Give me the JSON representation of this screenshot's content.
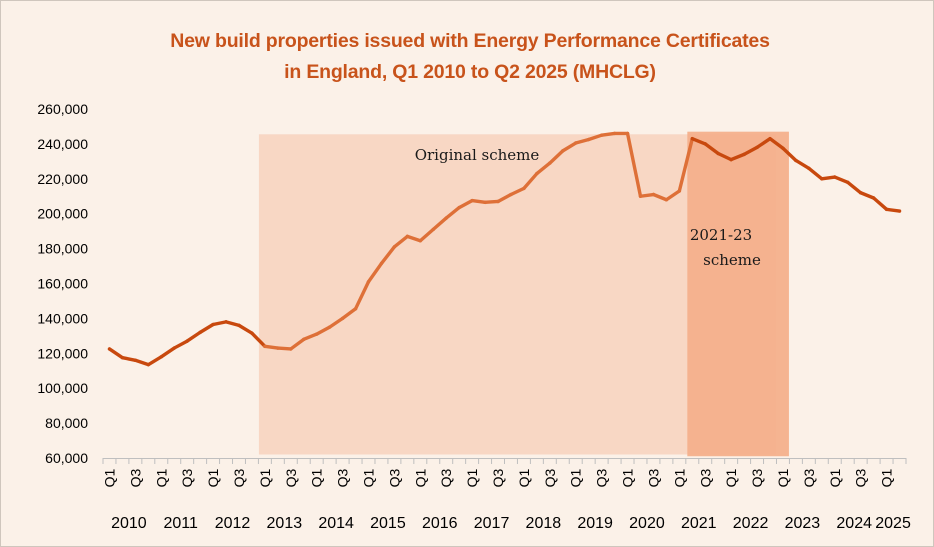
{
  "chart_data": {
    "type": "line",
    "title": [
      "New build properties issued with Energy Performance Certificates",
      "in England, Q1 2010 to Q2 2025 (MHCLG)"
    ],
    "xlabel": "",
    "ylabel": "",
    "ylim": [
      60000,
      260000
    ],
    "yticks": [
      60000,
      80000,
      100000,
      120000,
      140000,
      160000,
      180000,
      200000,
      220000,
      240000,
      260000
    ],
    "ytick_labels": [
      "60,000",
      "80,000",
      "100,000",
      "120,000",
      "140,000",
      "160,000",
      "180,000",
      "200,000",
      "220,000",
      "240,000",
      "260,000"
    ],
    "years": [
      "2010",
      "2011",
      "2012",
      "2013",
      "2014",
      "2015",
      "2016",
      "2017",
      "2018",
      "2019",
      "2020",
      "2021",
      "2022",
      "2023",
      "2024",
      "2025"
    ],
    "quarter_tick_labels": [
      "Q1",
      "Q3"
    ],
    "series": [
      {
        "name": "New build properties issued with EPCs",
        "values": [
          122500,
          117500,
          116000,
          113500,
          118000,
          123000,
          127000,
          132000,
          136500,
          138000,
          136000,
          131500,
          124000,
          123000,
          122500,
          128000,
          131000,
          135000,
          140000,
          145500,
          161000,
          171500,
          181000,
          187000,
          184500,
          191000,
          197500,
          203500,
          207500,
          206500,
          207000,
          211000,
          214500,
          223000,
          229000,
          236000,
          240500,
          242500,
          245000,
          246000,
          246000,
          210000,
          211000,
          208000,
          213000,
          243000,
          240000,
          234500,
          231000,
          234000,
          238000,
          243000,
          237500,
          230500,
          226000,
          220000,
          221000,
          218000,
          212000,
          209000,
          202500,
          201500
        ]
      }
    ],
    "shaded_regions": [
      {
        "label": "Original scheme",
        "start": "2013 Q1",
        "end": "2023 Q1",
        "start_index": 12,
        "end_index": 52,
        "color": "#f8d5c2"
      },
      {
        "label_lines": [
          "2021-23",
          "scheme"
        ],
        "start": "2021 Q2",
        "end": "2023 Q2",
        "start_index": 45,
        "end_index": 53,
        "color": "#f4b08c"
      }
    ],
    "line_colors": {
      "outside_schemes": "#c8490e",
      "original_scheme": "#de7038",
      "combined_schemes": "#c8490e"
    },
    "grid": false
  }
}
